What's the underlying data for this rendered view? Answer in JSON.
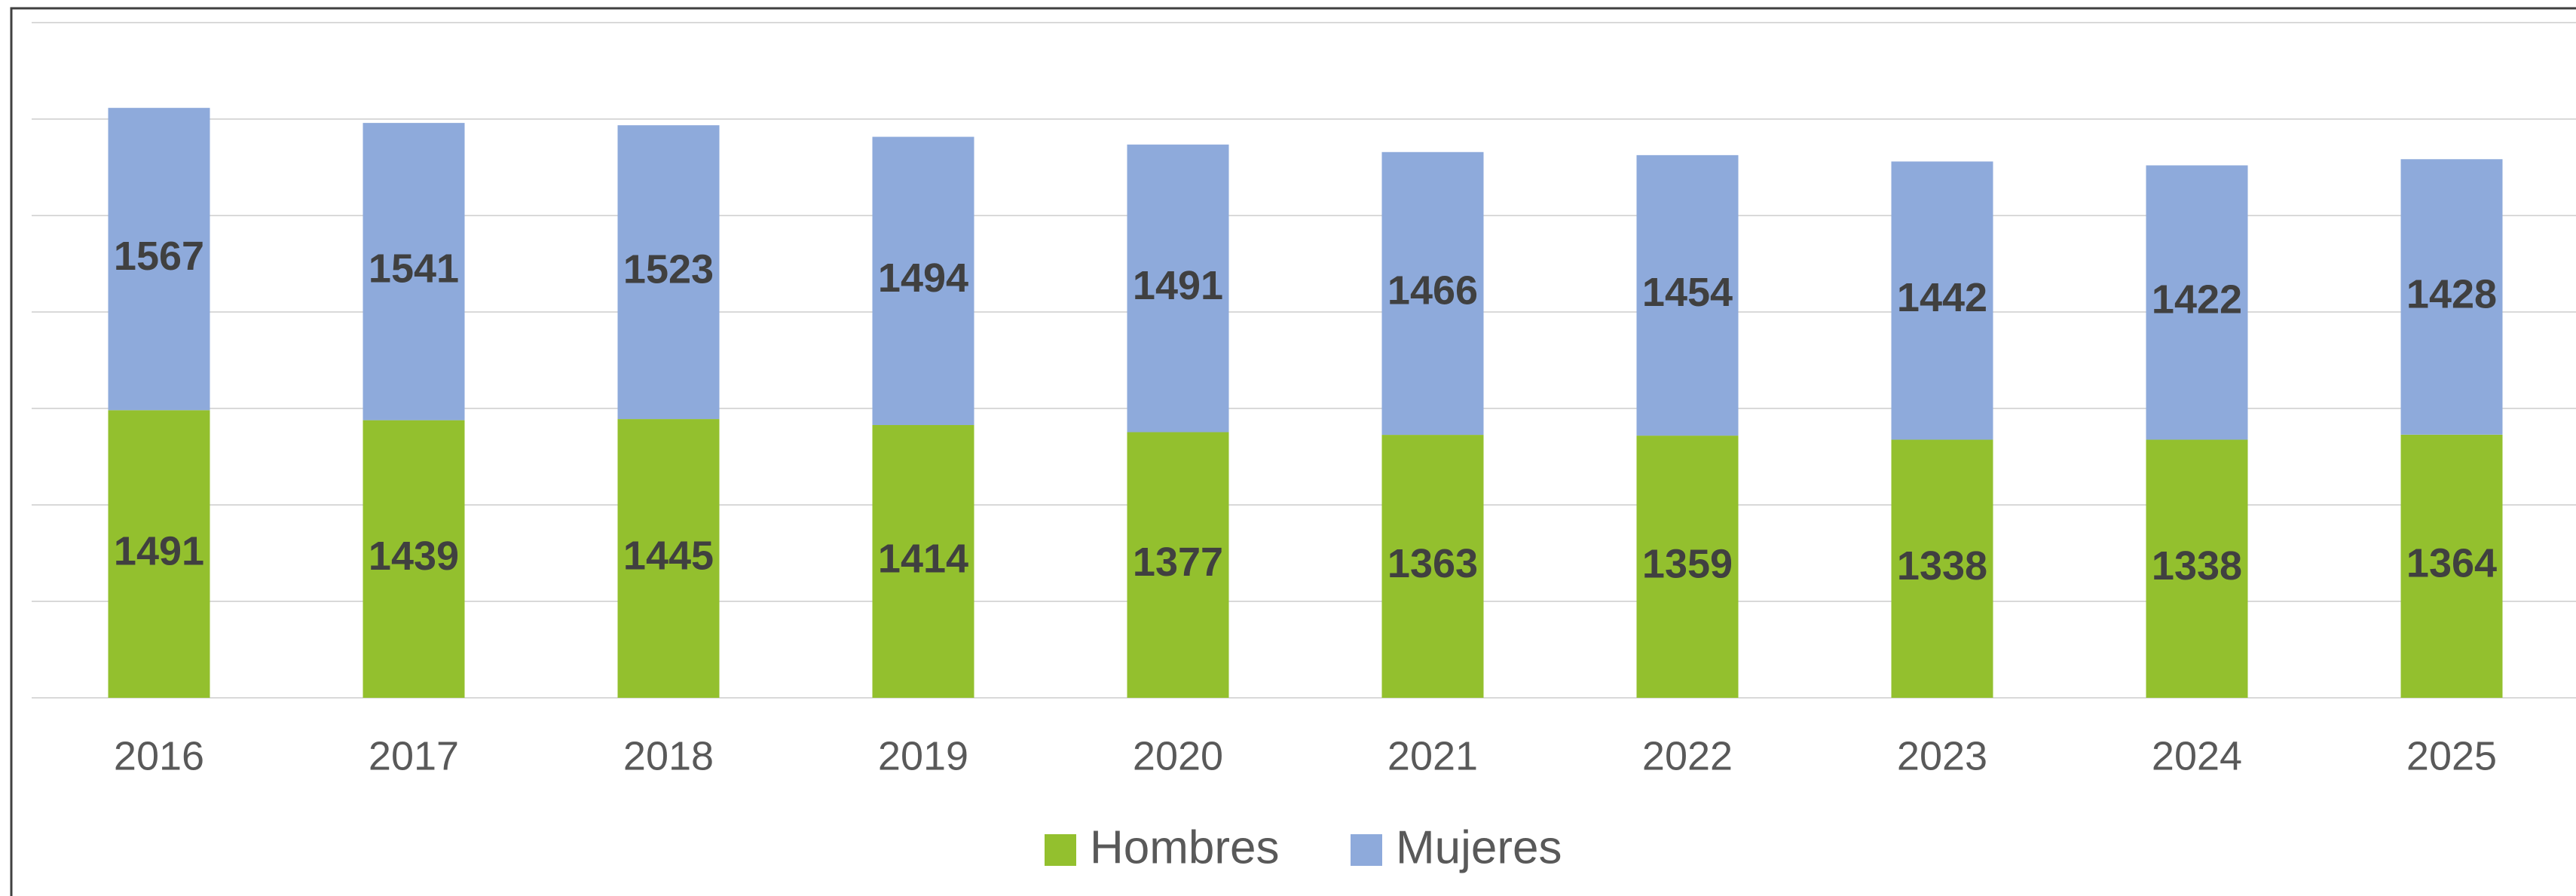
{
  "chart_data": {
    "type": "stacked_bar",
    "categories": [
      "2016",
      "2017",
      "2018",
      "2019",
      "2020",
      "2021",
      "2022",
      "2023",
      "2024",
      "2025"
    ],
    "series": [
      {
        "name": "Hombres",
        "color": "#93c02e",
        "values": [
          1491,
          1439,
          1445,
          1414,
          1377,
          1363,
          1359,
          1338,
          1338,
          1364
        ]
      },
      {
        "name": "Mujeres",
        "color": "#8eaadb",
        "values": [
          1567,
          1541,
          1523,
          1494,
          1491,
          1466,
          1454,
          1442,
          1422,
          1428
        ]
      }
    ],
    "ylim": [
      0,
      3500
    ],
    "yticks": [
      0,
      500,
      1000,
      1500,
      2000,
      2500,
      3000,
      3500
    ],
    "grid": true,
    "legend": "bottom"
  }
}
